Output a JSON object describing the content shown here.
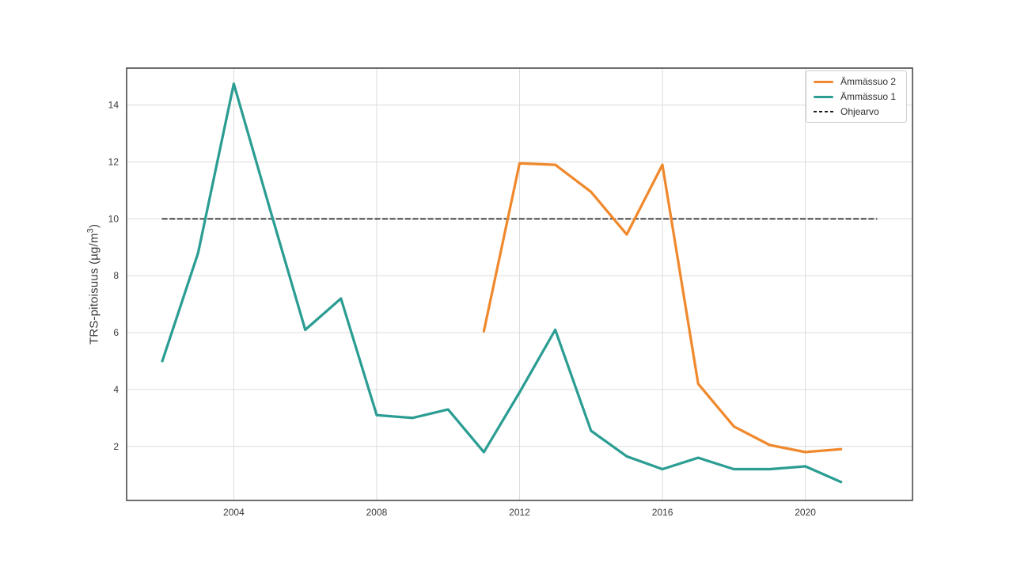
{
  "chart_data": {
    "type": "line",
    "title": "",
    "xlabel": "",
    "ylabel": "TRS-pitoisuus (µg/m³)",
    "ylabel_parts": {
      "prefix": "TRS-pitoisuus (µg/m",
      "sup": "3",
      "suffix": ")"
    },
    "xlim": [
      2001,
      2023
    ],
    "ylim": [
      0.1,
      15.3
    ],
    "xticks": [
      2004,
      2008,
      2012,
      2016,
      2020
    ],
    "yticks": [
      2,
      4,
      6,
      8,
      10,
      12,
      14
    ],
    "grid": true,
    "legend_position": "upper right",
    "series": [
      {
        "name": "Ämmässuo 2",
        "slug": "ammassuo-2",
        "color": "#f0892d",
        "style": "solid",
        "z": 1,
        "x": [
          2011,
          2012,
          2013,
          2014,
          2015,
          2016,
          2017,
          2018,
          2019,
          2020,
          2021
        ],
        "values": [
          6.05,
          11.95,
          11.9,
          10.95,
          9.45,
          11.9,
          4.2,
          2.7,
          2.05,
          1.8,
          1.9
        ]
      },
      {
        "name": "Ämmässuo 1",
        "slug": "ammassuo-1",
        "color": "#2b9d93",
        "style": "solid",
        "z": 2,
        "x": [
          2002,
          2003,
          2004,
          2005,
          2006,
          2007,
          2008,
          2009,
          2010,
          2011,
          2012,
          2013,
          2014,
          2015,
          2016,
          2017,
          2018,
          2019,
          2020,
          2021
        ],
        "values": [
          5.0,
          8.8,
          14.75,
          10.4,
          6.1,
          7.2,
          3.1,
          3.0,
          3.3,
          1.8,
          3.9,
          6.1,
          2.55,
          1.65,
          1.2,
          1.6,
          1.2,
          1.2,
          1.3,
          0.75
        ]
      },
      {
        "name": "Ohjearvo",
        "slug": "ohjearvo",
        "color": "#1c1c1c",
        "style": "dashed",
        "z": 0,
        "x": [
          2002,
          2022
        ],
        "values": [
          10,
          10
        ]
      }
    ]
  },
  "style": {
    "grid_color": "#dcdcdc",
    "frame_color": "#3f3f3f",
    "tick_text_color": "#3a3a3a",
    "background": "#ffffff",
    "line_width": 3.25,
    "dashed_line_width": 1.6
  }
}
